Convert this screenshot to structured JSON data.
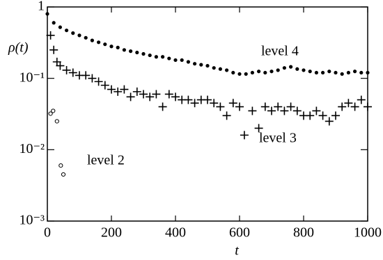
{
  "chart_data": {
    "type": "scatter",
    "x_label": "t",
    "y_label": "ρ(t)",
    "log_y": true,
    "xlim": [
      0,
      1000
    ],
    "xticks": [
      0,
      200,
      400,
      600,
      800,
      1000
    ],
    "ylim": [
      0.001,
      1
    ],
    "yticks": [
      {
        "value": 0.001,
        "label": "10⁻³"
      },
      {
        "value": 0.01,
        "label": "10⁻²"
      },
      {
        "value": 0.1,
        "label": "10⁻¹"
      },
      1
    ],
    "series": [
      {
        "name": "level 4",
        "color": "#000000",
        "marker": "dot",
        "x": [
          0,
          20,
          40,
          60,
          80,
          100,
          120,
          140,
          160,
          180,
          200,
          220,
          240,
          260,
          280,
          300,
          320,
          340,
          360,
          380,
          400,
          420,
          440,
          460,
          480,
          500,
          520,
          540,
          560,
          580,
          600,
          620,
          640,
          660,
          680,
          700,
          720,
          740,
          760,
          780,
          800,
          820,
          840,
          860,
          880,
          900,
          920,
          940,
          960,
          980,
          1000
        ],
        "values": [
          0.8,
          0.6,
          0.52,
          0.47,
          0.43,
          0.4,
          0.37,
          0.34,
          0.32,
          0.3,
          0.28,
          0.27,
          0.25,
          0.24,
          0.23,
          0.22,
          0.21,
          0.2,
          0.2,
          0.19,
          0.18,
          0.18,
          0.17,
          0.16,
          0.155,
          0.15,
          0.14,
          0.135,
          0.13,
          0.12,
          0.115,
          0.115,
          0.12,
          0.125,
          0.12,
          0.125,
          0.13,
          0.14,
          0.145,
          0.135,
          0.13,
          0.125,
          0.12,
          0.12,
          0.125,
          0.12,
          0.115,
          0.12,
          0.125,
          0.12,
          0.12
        ]
      },
      {
        "name": "level 3",
        "color": "#000000",
        "marker": "plus",
        "x": [
          10,
          20,
          30,
          40,
          60,
          80,
          100,
          120,
          140,
          160,
          180,
          200,
          220,
          240,
          260,
          280,
          300,
          320,
          340,
          360,
          380,
          400,
          420,
          440,
          460,
          480,
          500,
          520,
          540,
          560,
          580,
          600,
          615,
          640,
          660,
          680,
          700,
          720,
          740,
          760,
          780,
          800,
          820,
          840,
          860,
          880,
          900,
          920,
          940,
          960,
          980,
          1000
        ],
        "values": [
          0.4,
          0.25,
          0.17,
          0.15,
          0.13,
          0.12,
          0.11,
          0.11,
          0.1,
          0.09,
          0.08,
          0.07,
          0.065,
          0.07,
          0.055,
          0.065,
          0.06,
          0.055,
          0.06,
          0.04,
          0.06,
          0.055,
          0.05,
          0.05,
          0.045,
          0.05,
          0.05,
          0.045,
          0.04,
          0.03,
          0.045,
          0.04,
          0.016,
          0.035,
          0.02,
          0.04,
          0.035,
          0.04,
          0.035,
          0.04,
          0.035,
          0.03,
          0.03,
          0.035,
          0.03,
          0.025,
          0.03,
          0.04,
          0.045,
          0.04,
          0.05,
          0.04
        ]
      },
      {
        "name": "level 2",
        "color": "#000000",
        "marker": "circle",
        "x": [
          10,
          18,
          30,
          42,
          50
        ],
        "values": [
          0.032,
          0.035,
          0.025,
          0.006,
          0.0045
        ]
      }
    ]
  }
}
